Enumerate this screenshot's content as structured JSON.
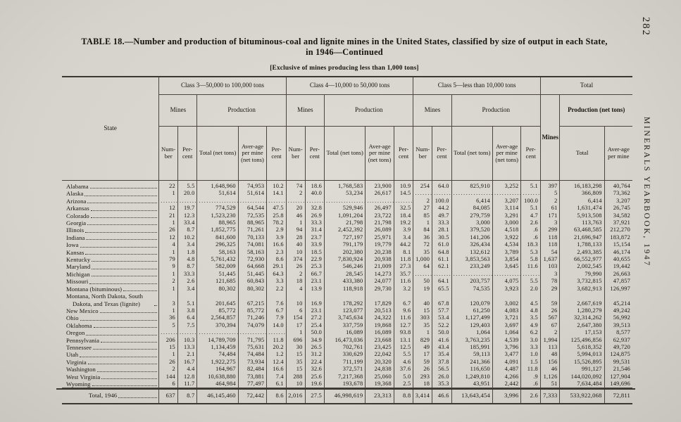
{
  "page": {
    "page_number": "282",
    "side_label": "MINERALS YEARBOOK, 1947",
    "title_line1": "TABLE 18.—Number and production of bituminous-coal and lignite mines in the United States, classified by size of output in each State,",
    "title_line2": "in 1946—Continued",
    "subtitle": "[Exclusive of mines producing less than 1,000 tons]"
  },
  "table": {
    "empty_marker": "..........................",
    "col_groups": [
      {
        "label": "Class 3—50,000 to 100,000 tons"
      },
      {
        "label": "Class 4—10,000 to 50,000 tons"
      },
      {
        "label": "Class 5—less than 10,000 tons"
      },
      {
        "label": "Total"
      }
    ],
    "sub_headers": {
      "mines": "Mines",
      "production": "Production",
      "production_net_tons": "Production (net tons)"
    },
    "col_headers": {
      "state": "State",
      "number": "Num-ber",
      "percent": "Per-cent",
      "total_net_tons": "Total (net tons)",
      "avg_per_mine": "Aver-age per mine (net tons)",
      "mines": "Mines",
      "total": "Total",
      "avg_per_mine_short": "Aver-age per mine"
    },
    "rows": [
      {
        "state": "Alabama",
        "cells": [
          "22",
          "5.5",
          "1,648,960",
          "74,953",
          "10.2",
          "74",
          "18.6",
          "1,768,583",
          "23,900",
          "10.9",
          "254",
          "64.0",
          "825,910",
          "3,252",
          "5.1",
          "397",
          "16,183,298",
          "40,764"
        ]
      },
      {
        "state": "Alaska",
        "cells": [
          "1",
          "20.0",
          "51,614",
          "51,614",
          "14.1",
          "2",
          "40.0",
          "53,234",
          "26,617",
          "14.5",
          "",
          "",
          "",
          "",
          "",
          "5",
          "366,809",
          "73,362"
        ]
      },
      {
        "state": "Arizona",
        "cells": [
          "",
          "",
          "",
          "",
          "",
          "",
          "",
          "",
          "",
          "",
          "2",
          "100.0",
          "6,414",
          "3,207",
          "100.0",
          "2",
          "6,414",
          "3,207"
        ]
      },
      {
        "state": "Arkansas",
        "cells": [
          "12",
          "19.7",
          "774,529",
          "64,544",
          "47.5",
          "20",
          "32.8",
          "529,946",
          "26,497",
          "32.5",
          "27",
          "44.2",
          "84,085",
          "3,114",
          "5.1",
          "61",
          "1,631,474",
          "26,745"
        ]
      },
      {
        "state": "Colorado",
        "cells": [
          "21",
          "12.3",
          "1,523,230",
          "72,535",
          "25.8",
          "46",
          "26.9",
          "1,091,204",
          "23,722",
          "18.4",
          "85",
          "49.7",
          "279,759",
          "3,291",
          "4.7",
          "171",
          "5,913,508",
          "34,582"
        ]
      },
      {
        "state": "Georgia",
        "cells": [
          "1",
          "33.4",
          "88,965",
          "88,965",
          "78.2",
          "1",
          "33.3",
          "21,798",
          "21,798",
          "19.2",
          "1",
          "33.3",
          "3,000",
          "3,000",
          "2.6",
          "3",
          "113,763",
          "37,921"
        ]
      },
      {
        "state": "Illinois",
        "cells": [
          "26",
          "8.7",
          "1,852,775",
          "71,261",
          "2.9",
          "94",
          "31.4",
          "2,452,392",
          "26,089",
          "3.9",
          "84",
          "28.1",
          "379,520",
          "4,518",
          ".6",
          "299",
          "63,468,585",
          "212,270"
        ]
      },
      {
        "state": "Indiana",
        "cells": [
          "12",
          "10.2",
          "841,600",
          "70,133",
          "3.9",
          "28",
          "23.7",
          "727,197",
          "25,971",
          "3.4",
          "36",
          "30.5",
          "141,206",
          "3,922",
          ".6",
          "118",
          "21,696,947",
          "183,872"
        ]
      },
      {
        "state": "Iowa",
        "cells": [
          "4",
          "3.4",
          "296,325",
          "74,081",
          "16.6",
          "40",
          "33.9",
          "791,179",
          "19,779",
          "44.2",
          "72",
          "61.0",
          "326,434",
          "4,534",
          "18.3",
          "118",
          "1,788,133",
          "15,154"
        ]
      },
      {
        "state": "Kansas",
        "cells": [
          "1",
          "1.8",
          "58,163",
          "58,163",
          "2.3",
          "10",
          "18.5",
          "202,380",
          "20,238",
          "8.1",
          "35",
          "64.8",
          "132,612",
          "3,789",
          "5.3",
          "54",
          "2,493,385",
          "46,174"
        ]
      },
      {
        "state": "Kentucky",
        "cells": [
          "79",
          "4.8",
          "5,761,432",
          "72,930",
          "8.6",
          "374",
          "22.9",
          "7,830,924",
          "20,938",
          "11.8",
          "1,000",
          "61.1",
          "3,853,563",
          "3,854",
          "5.8",
          "1,637",
          "66,552,977",
          "40,655"
        ]
      },
      {
        "state": "Maryland",
        "cells": [
          "9",
          "8.7",
          "582,009",
          "64,668",
          "29.1",
          "26",
          "25.3",
          "546,246",
          "21,009",
          "27.3",
          "64",
          "62.1",
          "233,249",
          "3,645",
          "11.6",
          "103",
          "2,002,545",
          "19,442"
        ]
      },
      {
        "state": "Michigan",
        "cells": [
          "1",
          "33.3",
          "51,445",
          "51,445",
          "64.3",
          "2",
          "66.7",
          "28,545",
          "14,273",
          "35.7",
          "",
          "",
          "",
          "",
          "",
          "3",
          "79,990",
          "26,663"
        ]
      },
      {
        "state": "Missouri",
        "cells": [
          "2",
          "2.6",
          "121,685",
          "60,843",
          "3.3",
          "18",
          "23.1",
          "433,380",
          "24,077",
          "11.6",
          "50",
          "64.1",
          "203,757",
          "4,075",
          "5.5",
          "78",
          "3,732,815",
          "47,857"
        ]
      },
      {
        "state": "Montana (bituminous)",
        "cells": [
          "1",
          "3.4",
          "80,302",
          "80,302",
          "2.2",
          "4",
          "13.9",
          "118,918",
          "29,730",
          "3.2",
          "19",
          "65.5",
          "74,535",
          "3,923",
          "2.0",
          "29",
          "3,682,913",
          "126,997"
        ]
      },
      {
        "state": "Montana, North Dakota, South Dakota, and Texas (lignite)",
        "cells": [
          "3",
          "5.1",
          "201,645",
          "67,215",
          "7.6",
          "10",
          "16.9",
          "178,292",
          "17,829",
          "6.7",
          "40",
          "67.8",
          "120,079",
          "3,002",
          "4.5",
          "59",
          "2,667,619",
          "45,214"
        ]
      },
      {
        "state": "New Mexico",
        "cells": [
          "1",
          "3.8",
          "85,772",
          "85,772",
          "6.7",
          "6",
          "23.1",
          "123,077",
          "20,513",
          "9.6",
          "15",
          "57.7",
          "61,250",
          "4,083",
          "4.8",
          "26",
          "1,280,279",
          "49,242"
        ]
      },
      {
        "state": "Ohio",
        "cells": [
          "36",
          "6.4",
          "2,564,857",
          "71,246",
          "7.9",
          "154",
          "27.2",
          "3,745,634",
          "24,322",
          "11.6",
          "303",
          "53.4",
          "1,127,499",
          "3,721",
          "3.5",
          "567",
          "32,314,262",
          "56,992"
        ]
      },
      {
        "state": "Oklahoma",
        "cells": [
          "5",
          "7.5",
          "370,394",
          "74,079",
          "14.0",
          "17",
          "25.4",
          "337,759",
          "19,868",
          "12.7",
          "35",
          "52.2",
          "129,403",
          "3,697",
          "4.9",
          "67",
          "2,647,380",
          "39,513"
        ]
      },
      {
        "state": "Oregon",
        "cells": [
          "",
          "",
          "",
          "",
          "",
          "1",
          "50.0",
          "16,089",
          "16,089",
          "93.8",
          "1",
          "50.0",
          "1,064",
          "1,064",
          "6.2",
          "2",
          "17,153",
          "8,577"
        ]
      },
      {
        "state": "Pennsylvania",
        "cells": [
          "206",
          "10.3",
          "14,789,709",
          "71,795",
          "11.8",
          "696",
          "34.9",
          "16,473,036",
          "23,668",
          "13.1",
          "829",
          "41.6",
          "3,763,235",
          "4,539",
          "3.0",
          "1,994",
          "125,496,856",
          "62,937"
        ]
      },
      {
        "state": "Tennessee",
        "cells": [
          "15",
          "13.3",
          "1,134,459",
          "75,631",
          "20.2",
          "30",
          "26.5",
          "702,761",
          "23,425",
          "12.5",
          "49",
          "43.4",
          "185,991",
          "3,796",
          "3.3",
          "113",
          "5,618,352",
          "49,720"
        ]
      },
      {
        "state": "Utah",
        "cells": [
          "1",
          "2.1",
          "74,484",
          "74,484",
          "1.2",
          "15",
          "31.2",
          "330,629",
          "22,042",
          "5.5",
          "17",
          "35.4",
          "59,113",
          "3,477",
          "1.0",
          "48",
          "5,994,013",
          "124,875"
        ]
      },
      {
        "state": "Virginia",
        "cells": [
          "26",
          "16.7",
          "1,922,275",
          "73,934",
          "12.4",
          "35",
          "22.4",
          "711,199",
          "20,320",
          "4.6",
          "59",
          "37.8",
          "241,366",
          "4,091",
          "1.5",
          "156",
          "15,526,895",
          "99,531"
        ]
      },
      {
        "state": "Washington",
        "cells": [
          "2",
          "4.4",
          "164,967",
          "82,484",
          "16.6",
          "15",
          "32.6",
          "372,571",
          "24,838",
          "37.6",
          "26",
          "56.5",
          "116,650",
          "4,487",
          "11.8",
          "46",
          "991,127",
          "21,546"
        ]
      },
      {
        "state": "West Virginia",
        "cells": [
          "144",
          "12.8",
          "10,638,880",
          "73,881",
          "7.4",
          "288",
          "25.6",
          "7,217,368",
          "25,060",
          "5.0",
          "293",
          "26.0",
          "1,249,810",
          "4,266",
          ".9",
          "1,126",
          "144,020,092",
          "127,904"
        ]
      },
      {
        "state": "Wyoming",
        "cells": [
          "6",
          "11.7",
          "464,984",
          "77,497",
          "6.1",
          "10",
          "19.6",
          "193,678",
          "19,368",
          "2.5",
          "18",
          "35.3",
          "43,951",
          "2,442",
          ".6",
          "51",
          "7,634,484",
          "149,696"
        ]
      }
    ],
    "total_row": {
      "state": "Total, 1946",
      "cells": [
        "637",
        "8.7",
        "46,145,460",
        "72,442",
        "8.6",
        "2,016",
        "27.5",
        "46,998,619",
        "23,313",
        "8.8",
        "3,414",
        "46.6",
        "13,643,454",
        "3,996",
        "2.6",
        "7,333",
        "533,922,068",
        "72,811"
      ]
    }
  }
}
